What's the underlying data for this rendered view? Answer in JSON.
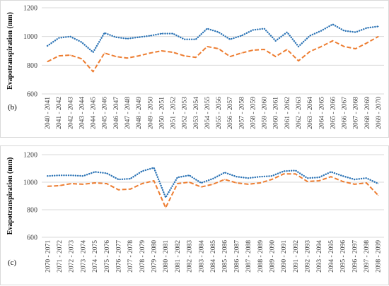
{
  "colors": {
    "blue": "#2E75B6",
    "orange": "#ED7D31",
    "grid": "#d9d9d9"
  },
  "chart_data": [
    {
      "type": "line",
      "panel_label": "(b)",
      "ylabel": "Evapotranspiration (mm)",
      "ylim": [
        600,
        1200
      ],
      "yticks": [
        600,
        800,
        1000,
        1200
      ],
      "grid": true,
      "categories": [
        "2040 - 2041",
        "2041 - 2042",
        "2042 - 2043",
        "2043 - 2044",
        "2044 - 2045",
        "2045 - 2046",
        "2046 - 2047",
        "2047 - 2048",
        "2048 - 2049",
        "2049 - 2050",
        "2050 - 2051",
        "2051 - 2052",
        "2052 - 2053",
        "2053 - 2054",
        "2054 - 2055",
        "2055 - 2056",
        "2056 - 2057",
        "2057 - 2058",
        "2058 - 2059",
        "2059 - 2060",
        "2060 - 2061",
        "2061 - 2062",
        "2062 - 2063",
        "2063 - 2064",
        "2064 - 2065",
        "2065 - 2066",
        "2066 - 2067",
        "2067 - 2068",
        "2068 - 2069",
        "2069 - 2070"
      ],
      "series": [
        {
          "style": "dotted",
          "color": "#2E75B6",
          "values": [
            935,
            990,
            1000,
            960,
            890,
            1025,
            995,
            985,
            995,
            1005,
            1020,
            1020,
            980,
            980,
            1055,
            1030,
            980,
            1005,
            1045,
            1055,
            970,
            1030,
            930,
            1005,
            1040,
            1085,
            1040,
            1030,
            1060,
            1070
          ]
        },
        {
          "style": "dashed",
          "color": "#ED7D31",
          "values": [
            825,
            865,
            870,
            845,
            755,
            885,
            860,
            850,
            865,
            885,
            900,
            890,
            865,
            855,
            930,
            915,
            860,
            885,
            905,
            910,
            860,
            910,
            830,
            895,
            930,
            970,
            930,
            915,
            955,
            1000
          ]
        }
      ]
    },
    {
      "type": "line",
      "panel_label": "(c)",
      "ylabel": "Evapotranspiration (mm)",
      "ylim": [
        600,
        1200
      ],
      "yticks": [
        600,
        800,
        1000,
        1200
      ],
      "grid": true,
      "categories": [
        "2070 - 2071",
        "2071 - 2072",
        "2072 - 2073",
        "2073 - 2074",
        "2074 - 2075",
        "2075 - 2076",
        "2076 - 2077",
        "2077 - 2078",
        "2078 - 2079",
        "2079 - 2080",
        "2080 - 2081",
        "2081 - 2082",
        "2082 - 2083",
        "2083 - 2084",
        "2084 - 2085",
        "2085 - 2086",
        "2086 - 2087",
        "2087 - 2088",
        "2088 - 2089",
        "2089 - 2090",
        "2090 - 2091",
        "2091 - 2092",
        "2092 - 2093",
        "2093 - 2094",
        "2094 - 2095",
        "2095 - 2096",
        "2096 - 2097",
        "2097 - 2098",
        "2098 - 2099"
      ],
      "series": [
        {
          "style": "dotted",
          "color": "#2E75B6",
          "values": [
            1045,
            1050,
            1050,
            1045,
            1075,
            1065,
            1020,
            1025,
            1080,
            1105,
            890,
            1035,
            1050,
            995,
            1025,
            1070,
            1040,
            1030,
            1040,
            1045,
            1080,
            1085,
            1030,
            1035,
            1075,
            1045,
            1020,
            1030,
            990
          ]
        },
        {
          "style": "dashed",
          "color": "#ED7D31",
          "values": [
            970,
            975,
            990,
            985,
            995,
            990,
            945,
            950,
            990,
            1010,
            815,
            990,
            1000,
            965,
            985,
            1020,
            995,
            985,
            995,
            1020,
            1060,
            1060,
            1005,
            1010,
            1040,
            1005,
            985,
            995,
            905
          ]
        }
      ]
    }
  ]
}
